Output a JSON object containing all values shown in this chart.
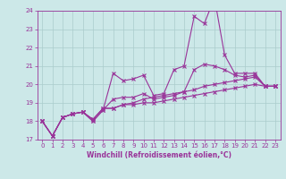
{
  "background_color": "#cce8e8",
  "line_color": "#993399",
  "grid_color": "#aacccc",
  "spine_color": "#993399",
  "xlim": [
    -0.5,
    23.5
  ],
  "ylim": [
    17,
    24
  ],
  "xticks": [
    0,
    1,
    2,
    3,
    4,
    5,
    6,
    7,
    8,
    9,
    10,
    11,
    12,
    13,
    14,
    15,
    16,
    17,
    18,
    19,
    20,
    21,
    22,
    23
  ],
  "yticks": [
    17,
    18,
    19,
    20,
    21,
    22,
    23,
    24
  ],
  "xlabel": "Windchill (Refroidissement éolien,°C)",
  "tick_fontsize": 5,
  "xlabel_fontsize": 5.5,
  "series": [
    [
      18.0,
      17.2,
      18.2,
      18.4,
      18.5,
      18.0,
      18.6,
      20.6,
      20.2,
      20.3,
      20.5,
      19.4,
      19.5,
      20.8,
      21.0,
      23.7,
      23.3,
      24.7,
      21.6,
      20.6,
      20.6,
      20.6,
      19.9,
      19.9
    ],
    [
      18.0,
      17.2,
      18.2,
      18.4,
      18.5,
      18.0,
      18.6,
      19.2,
      19.3,
      19.3,
      19.5,
      19.2,
      19.3,
      19.4,
      19.6,
      20.8,
      21.1,
      21.0,
      20.8,
      20.5,
      20.4,
      20.5,
      19.9,
      19.9
    ],
    [
      18.0,
      17.2,
      18.2,
      18.4,
      18.5,
      18.1,
      18.7,
      18.7,
      18.9,
      19.0,
      19.2,
      19.3,
      19.4,
      19.5,
      19.6,
      19.7,
      19.9,
      20.0,
      20.1,
      20.2,
      20.3,
      20.4,
      19.9,
      19.9
    ],
    [
      18.0,
      17.2,
      18.2,
      18.4,
      18.5,
      18.1,
      18.7,
      18.7,
      18.9,
      18.9,
      19.0,
      19.0,
      19.1,
      19.2,
      19.3,
      19.4,
      19.5,
      19.6,
      19.7,
      19.8,
      19.9,
      20.0,
      19.9,
      19.9
    ]
  ]
}
